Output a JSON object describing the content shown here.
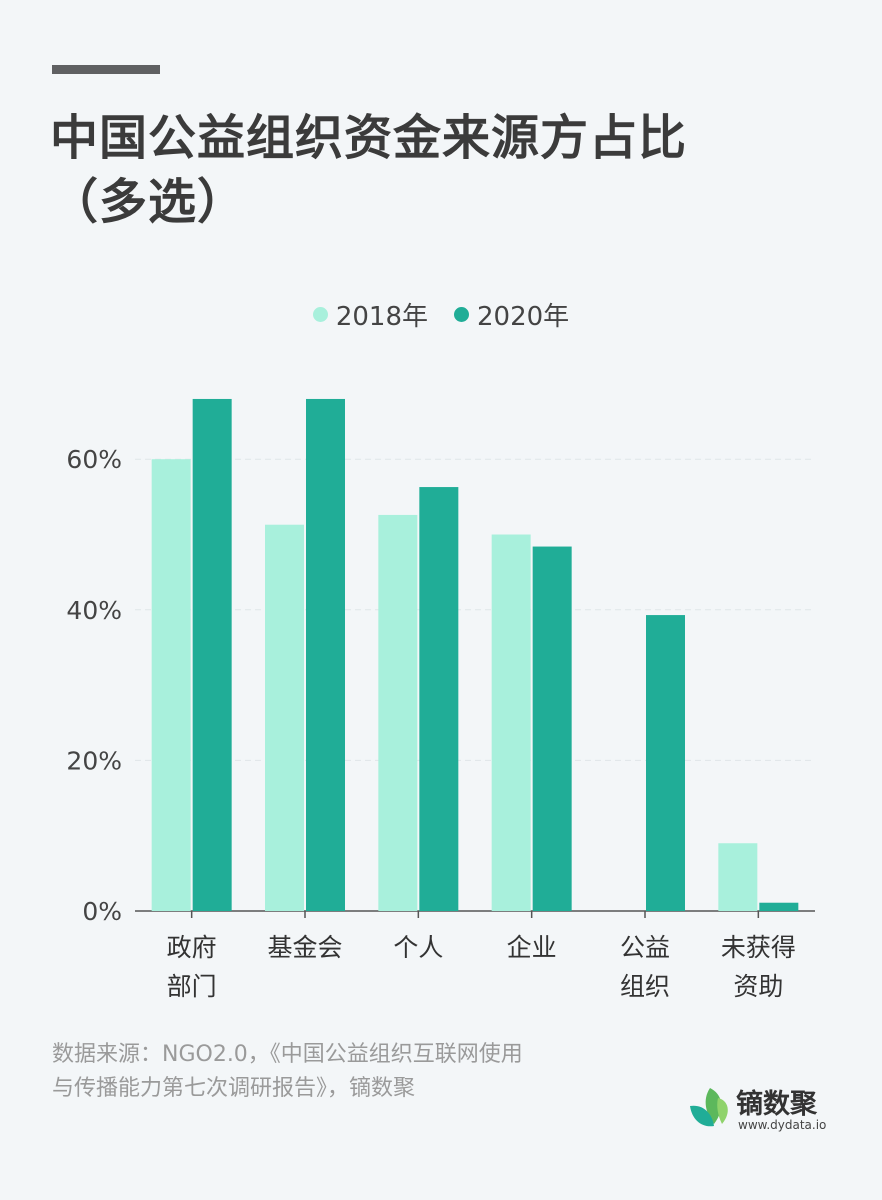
{
  "title_lines": [
    "中国公益组织资金来源方占比",
    "（多选）"
  ],
  "legend": [
    {
      "label": "2018年",
      "color": "#a8f0dc"
    },
    {
      "label": "2020年",
      "color": "#20ad97"
    }
  ],
  "source_lines": [
    "数据来源：NGO2.0，《中国公益组织互联网使用",
    "与传播能力第七次调研报告》，镝数聚"
  ],
  "logo": {
    "name": "镝数聚",
    "url": "www.dydata.io"
  },
  "chart_data": {
    "type": "bar",
    "categories": [
      [
        "政府",
        "部门"
      ],
      [
        "基金会"
      ],
      [
        "个人"
      ],
      [
        "企业"
      ],
      [
        "公益",
        "组织"
      ],
      [
        "未获得",
        "资助"
      ]
    ],
    "series": [
      {
        "name": "2018年",
        "color": "#a8f0dc",
        "values": [
          60.0,
          51.3,
          52.6,
          50.0,
          null,
          9.0
        ]
      },
      {
        "name": "2020年",
        "color": "#20ad97",
        "values": [
          68.0,
          68.0,
          56.3,
          48.4,
          39.3,
          1.1
        ]
      }
    ],
    "yticks": [
      "0%",
      "20%",
      "40%",
      "60%"
    ],
    "ytick_values": [
      0,
      20,
      40,
      60
    ],
    "ylim": [
      0,
      75
    ],
    "grid": true
  }
}
